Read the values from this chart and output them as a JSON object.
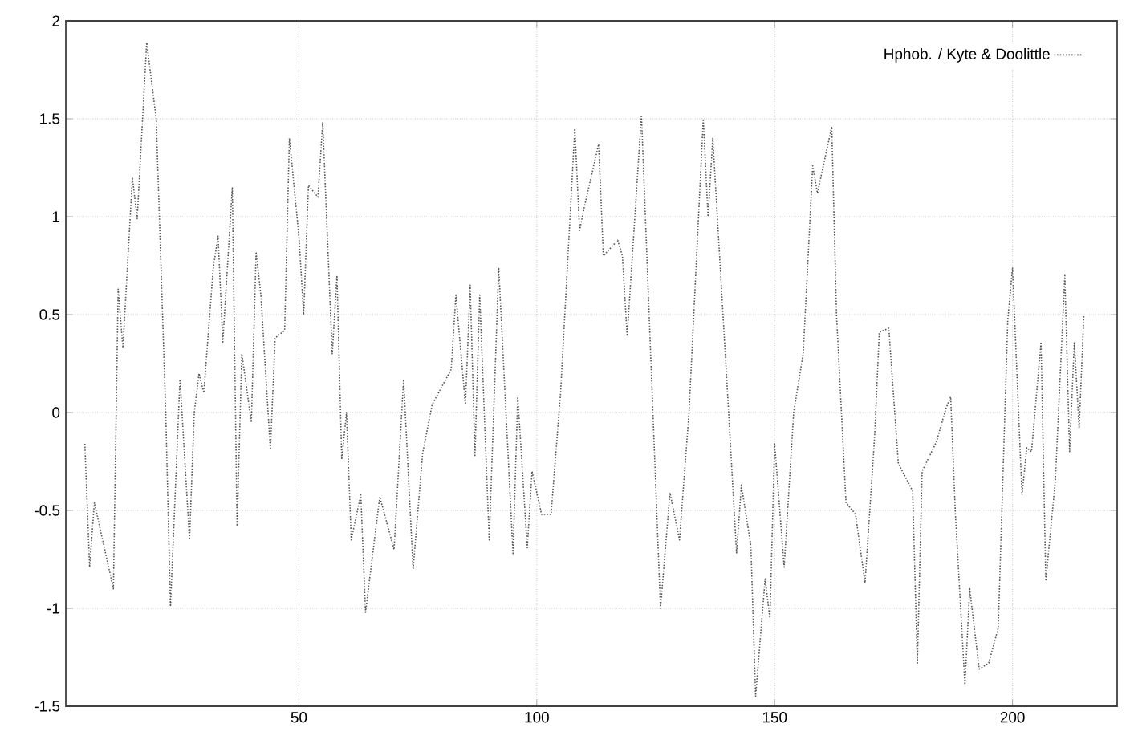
{
  "chart_data": {
    "type": "line",
    "series": [
      {
        "name": "Hphob. / Kyte & Doolittle",
        "color": "#555555",
        "line_style": "dotted",
        "x": [
          5,
          6,
          7,
          11,
          12,
          13,
          15,
          16,
          18,
          20,
          22,
          23,
          25,
          27,
          28,
          29,
          30,
          32,
          33,
          34,
          36,
          37,
          38,
          40,
          41,
          42,
          44,
          45,
          47,
          48,
          50,
          51,
          52,
          54,
          55,
          57,
          58,
          59,
          60,
          61,
          63,
          64,
          67,
          70,
          72,
          74,
          76,
          78,
          82,
          83,
          85,
          86,
          87,
          88,
          90,
          92,
          95,
          96,
          98,
          99,
          101,
          103,
          105,
          108,
          109,
          110,
          113,
          114,
          117,
          118,
          119,
          122,
          126,
          128,
          130,
          132,
          135,
          136,
          137,
          140,
          142,
          143,
          145,
          146,
          148,
          149,
          150,
          152,
          154,
          156,
          158,
          159,
          162,
          163,
          165,
          167,
          169,
          171,
          172,
          174,
          176,
          179,
          180,
          181,
          183,
          184,
          186,
          187,
          188,
          190,
          191,
          193,
          195,
          197,
          199,
          200,
          202,
          203,
          204,
          206,
          207,
          209,
          211,
          212,
          213,
          214,
          215
        ],
        "values": [
          -0.16,
          -0.79,
          -0.46,
          -0.9,
          0.63,
          0.33,
          1.2,
          0.99,
          1.89,
          1.5,
          0.0,
          -0.99,
          0.17,
          -0.65,
          0.0,
          0.2,
          0.1,
          0.74,
          0.9,
          0.36,
          1.15,
          -0.58,
          0.3,
          -0.05,
          0.82,
          0.6,
          -0.19,
          0.38,
          0.42,
          1.4,
          0.9,
          0.5,
          1.16,
          1.1,
          1.48,
          0.3,
          0.7,
          -0.24,
          0.0,
          -0.65,
          -0.42,
          -1.02,
          -0.43,
          -0.7,
          0.17,
          -0.8,
          -0.21,
          0.04,
          0.22,
          0.6,
          0.04,
          0.65,
          -0.22,
          0.6,
          -0.65,
          0.74,
          -0.72,
          0.08,
          -0.69,
          -0.3,
          -0.52,
          -0.52,
          0.1,
          1.45,
          0.93,
          1.05,
          1.37,
          0.8,
          0.88,
          0.8,
          0.39,
          1.52,
          -1.0,
          -0.41,
          -0.65,
          0.0,
          1.5,
          1.0,
          1.4,
          0.14,
          -0.72,
          -0.37,
          -0.68,
          -1.45,
          -0.85,
          -1.05,
          -0.16,
          -0.79,
          0.0,
          0.3,
          1.26,
          1.12,
          1.46,
          0.5,
          -0.46,
          -0.52,
          -0.87,
          -0.13,
          0.41,
          0.43,
          -0.26,
          -0.4,
          -1.28,
          -0.3,
          -0.2,
          -0.15,
          0.02,
          0.08,
          -0.52,
          -1.39,
          -0.9,
          -1.31,
          -1.28,
          -1.1,
          0.47,
          0.74,
          -0.42,
          -0.18,
          -0.2,
          0.36,
          -0.86,
          -0.35,
          0.7,
          -0.2,
          0.36,
          -0.08,
          0.5
        ]
      }
    ],
    "xlim": [
      1,
      222
    ],
    "ylim": [
      -1.5,
      2
    ],
    "xticks": [
      50,
      100,
      150,
      200
    ],
    "yticks": [
      -1.5,
      -1,
      -0.5,
      0,
      0.5,
      1,
      1.5,
      2
    ],
    "grid": true,
    "legend": "top right"
  }
}
